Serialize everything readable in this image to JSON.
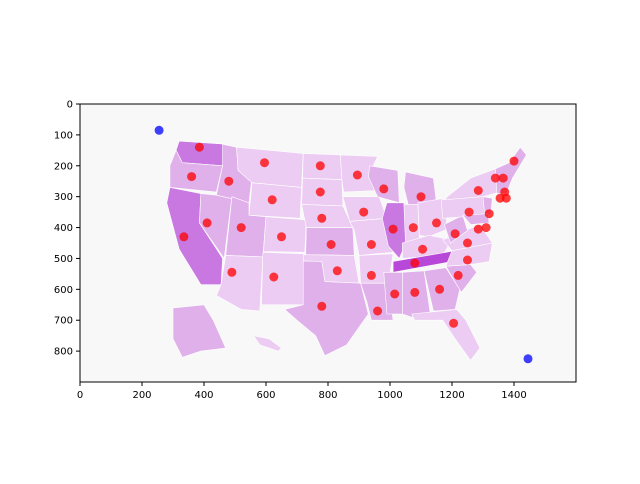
{
  "chart_data": {
    "type": "scatter",
    "title": "",
    "xlabel": "",
    "ylabel": "",
    "xlim": [
      0,
      1600
    ],
    "ylim": [
      900,
      0
    ],
    "y_inverted": true,
    "grid": false,
    "legend": "none",
    "x_ticks": [
      "0",
      "200",
      "400",
      "600",
      "800",
      "1000",
      "1200",
      "1400"
    ],
    "x_tick_values": [
      0,
      200,
      400,
      600,
      800,
      1000,
      1200,
      1400
    ],
    "y_ticks": [
      "0",
      "100",
      "200",
      "300",
      "400",
      "500",
      "600",
      "700",
      "800"
    ],
    "y_tick_values": [
      0,
      100,
      200,
      300,
      400,
      500,
      600,
      700,
      800
    ],
    "background_image": "usa-states-choropleth-map",
    "colors": {
      "plot_background": "#f8f8f8",
      "map_light": "#ecccf2",
      "map_medium": "#e0b0ea",
      "map_dark": "#c878e0",
      "map_darkest": "#b848d8",
      "red_points": "#ff0000",
      "blue_points": "#0000ff"
    },
    "series": [
      {
        "color": "red",
        "points": [
          [
            385,
            140
          ],
          [
            360,
            235
          ],
          [
            480,
            250
          ],
          [
            595,
            190
          ],
          [
            620,
            310
          ],
          [
            775,
            200
          ],
          [
            775,
            285
          ],
          [
            895,
            230
          ],
          [
            980,
            275
          ],
          [
            1100,
            300
          ],
          [
            410,
            385
          ],
          [
            520,
            400
          ],
          [
            650,
            430
          ],
          [
            780,
            370
          ],
          [
            915,
            350
          ],
          [
            1010,
            405
          ],
          [
            1075,
            400
          ],
          [
            1150,
            385
          ],
          [
            1255,
            350
          ],
          [
            1285,
            280
          ],
          [
            335,
            430
          ],
          [
            490,
            545
          ],
          [
            625,
            560
          ],
          [
            810,
            455
          ],
          [
            940,
            455
          ],
          [
            1105,
            470
          ],
          [
            1210,
            420
          ],
          [
            1250,
            450
          ],
          [
            1285,
            405
          ],
          [
            1310,
            400
          ],
          [
            1320,
            355
          ],
          [
            1340,
            240
          ],
          [
            1365,
            240
          ],
          [
            1400,
            185
          ],
          [
            1370,
            285
          ],
          [
            1355,
            305
          ],
          [
            1375,
            305
          ],
          [
            830,
            540
          ],
          [
            940,
            555
          ],
          [
            1080,
            515
          ],
          [
            1250,
            505
          ],
          [
            1220,
            555
          ],
          [
            1015,
            615
          ],
          [
            1080,
            610
          ],
          [
            1160,
            600
          ],
          [
            780,
            655
          ],
          [
            960,
            670
          ],
          [
            1205,
            710
          ]
        ]
      },
      {
        "color": "blue",
        "points": [
          [
            255,
            85
          ],
          [
            1445,
            825
          ]
        ]
      }
    ]
  }
}
